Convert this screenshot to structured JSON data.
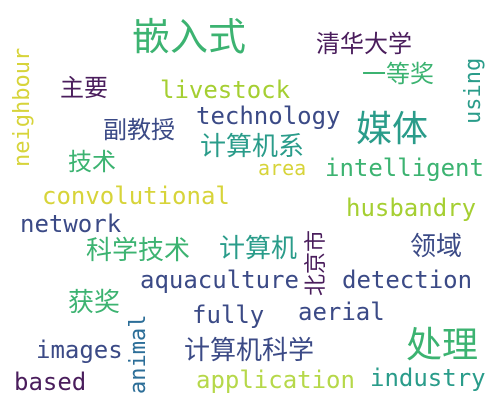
{
  "word_cloud": {
    "words": [
      {
        "id": "w1",
        "text": "嵌入式",
        "color": "#3cb371"
      },
      {
        "id": "w2",
        "text": "清华大学",
        "color": "#4a1d5c"
      },
      {
        "id": "w3",
        "text": "neighbour",
        "color": "#d7d43a"
      },
      {
        "id": "w4",
        "text": "主要",
        "color": "#4a1d5c"
      },
      {
        "id": "w5",
        "text": "livestock",
        "color": "#a5cf32"
      },
      {
        "id": "w6",
        "text": "一等奖",
        "color": "#3cb371"
      },
      {
        "id": "w7",
        "text": "using",
        "color": "#2a9c8a"
      },
      {
        "id": "w8",
        "text": "technology",
        "color": "#3b4a86"
      },
      {
        "id": "w9",
        "text": "媒体",
        "color": "#2a9c8a"
      },
      {
        "id": "w10",
        "text": "副教授",
        "color": "#3b4a86"
      },
      {
        "id": "w11",
        "text": "计算机系",
        "color": "#2a9c8a"
      },
      {
        "id": "w12",
        "text": "技术",
        "color": "#3cb371"
      },
      {
        "id": "w13",
        "text": "area",
        "color": "#d7d43a"
      },
      {
        "id": "w14",
        "text": "intelligent",
        "color": "#3cb371"
      },
      {
        "id": "w15",
        "text": "convolutional",
        "color": "#d7d43a"
      },
      {
        "id": "w16",
        "text": "husbandry",
        "color": "#a5cf32"
      },
      {
        "id": "w17",
        "text": "network",
        "color": "#3b4a86"
      },
      {
        "id": "w18",
        "text": "北京市",
        "color": "#4a1d5c"
      },
      {
        "id": "w19",
        "text": "科学技术",
        "color": "#3cb371"
      },
      {
        "id": "w20",
        "text": "计算机",
        "color": "#2a9c8a"
      },
      {
        "id": "w21",
        "text": "领域",
        "color": "#3b4a86"
      },
      {
        "id": "w22",
        "text": "aquaculture",
        "color": "#3b4a86"
      },
      {
        "id": "w23",
        "text": "detection",
        "color": "#3b4a86"
      },
      {
        "id": "w24",
        "text": "获奖",
        "color": "#3cb371"
      },
      {
        "id": "w25",
        "text": "fully",
        "color": "#3b4a86"
      },
      {
        "id": "w26",
        "text": "aerial",
        "color": "#3b4a86"
      },
      {
        "id": "w27",
        "text": "animal",
        "color": "#2c6e98"
      },
      {
        "id": "w28",
        "text": "处理",
        "color": "#3cb371"
      },
      {
        "id": "w29",
        "text": "images",
        "color": "#3b4a86"
      },
      {
        "id": "w30",
        "text": "计算机科学",
        "color": "#3b4a86"
      },
      {
        "id": "w31",
        "text": "based",
        "color": "#4a1d5c"
      },
      {
        "id": "w32",
        "text": "application",
        "color": "#b6d84a"
      },
      {
        "id": "w33",
        "text": "industry",
        "color": "#2a9c8a"
      }
    ]
  }
}
